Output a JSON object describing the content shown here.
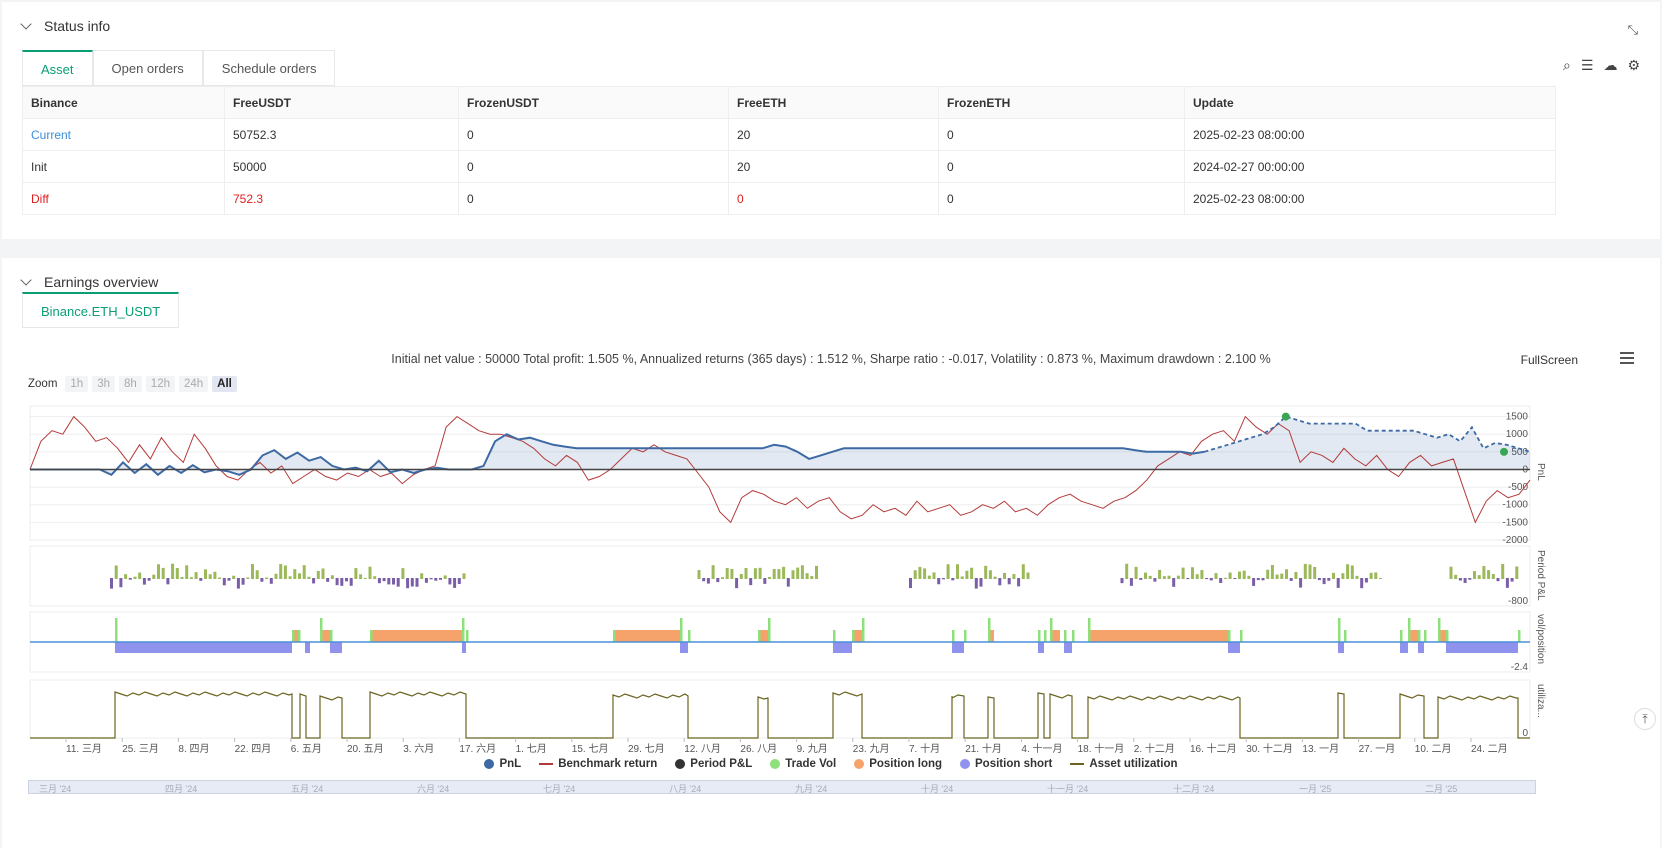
{
  "status": {
    "title": "Status info",
    "tabs": [
      "Asset",
      "Open orders",
      "Schedule orders"
    ],
    "columns": [
      "Binance",
      "FreeUSDT",
      "FrozenUSDT",
      "FreeETH",
      "FrozenETH",
      "Update"
    ],
    "rows": [
      {
        "label": "Current",
        "free_usdt": "50752.3",
        "frozen_usdt": "0",
        "free_eth": "20",
        "frozen_eth": "0",
        "update": "2025-02-23 08:00:00"
      },
      {
        "label": "Init",
        "free_usdt": "50000",
        "frozen_usdt": "0",
        "free_eth": "20",
        "frozen_eth": "0",
        "update": "2024-02-27 00:00:00"
      },
      {
        "label": "Diff",
        "free_usdt": "752.3",
        "frozen_usdt": "0",
        "free_eth": "0",
        "frozen_eth": "0",
        "update": "2025-02-23 08:00:00"
      }
    ]
  },
  "earnings": {
    "title": "Earnings overview",
    "tab": "Binance.ETH_USDT",
    "summary": "Initial net value : 50000 Total profit: 1.505 %, Annualized returns (365 days) : 1.512 %, Sharpe ratio : -0.017, Volatility : 0.873 %, Maximum drawdown : 2.100 %",
    "fullscreen": "FullScreen",
    "zoom_label": "Zoom",
    "zoom_buttons": [
      "1h",
      "3h",
      "8h",
      "12h",
      "24h",
      "All"
    ]
  },
  "colors": {
    "pnl": "#3d6aa5",
    "benchmark": "#b33a3a",
    "period_pnl": "#333333",
    "trade_vol": "#8ee07a",
    "position_long": "#f5a36a",
    "position_short": "#8f93ee",
    "asset_util": "#6b6320"
  },
  "chart_data": {
    "type": "line",
    "x_ticks": [
      "11. 三月",
      "25. 三月",
      "8. 四月",
      "22. 四月",
      "6. 五月",
      "20. 五月",
      "3. 六月",
      "17. 六月",
      "1. 七月",
      "15. 七月",
      "29. 七月",
      "12. 八月",
      "26. 八月",
      "9. 九月",
      "23. 九月",
      "7. 十月",
      "21. 十月",
      "4. 十一月",
      "18. 十一月",
      "2. 十二月",
      "16. 十二月",
      "30. 十二月",
      "13. 一月",
      "27. 一月",
      "10. 二月",
      "24. 二月"
    ],
    "navigator_ticks": [
      "三月 '24",
      "四月 '24",
      "五月 '24",
      "六月 '24",
      "七月 '24",
      "八月 '24",
      "九月 '24",
      "十月 '24",
      "十一月 '24",
      "十二月 '24",
      "一月 '25",
      "二月 '25"
    ],
    "pnl_axis": {
      "ticks": [
        1500,
        1000,
        500,
        0,
        -500,
        -1000,
        -1500,
        -2000
      ],
      "ylim": [
        -2000,
        1800
      ],
      "label": "PnL"
    },
    "period_axis": {
      "ticks": [
        -800
      ],
      "label": "Period P&L"
    },
    "vol_axis": {
      "ticks": [
        -2.4
      ],
      "label": "vol/position"
    },
    "util_axis": {
      "ticks": [
        0
      ],
      "label": "utiliza..."
    },
    "series": [
      {
        "name": "PnL",
        "values": [
          0,
          0,
          0,
          0,
          0,
          0,
          0,
          -150,
          200,
          -100,
          150,
          -150,
          100,
          -100,
          120,
          -80,
          0,
          -50,
          -150,
          0,
          400,
          550,
          300,
          480,
          250,
          350,
          100,
          0,
          50,
          -50,
          250,
          -80,
          0,
          -100,
          0,
          50,
          0,
          0,
          0,
          100,
          800,
          1000,
          850,
          900,
          800,
          700,
          650,
          600,
          600,
          600,
          600,
          600,
          600,
          600,
          600,
          600,
          600,
          600,
          600,
          600,
          600,
          600,
          600,
          600,
          700,
          650,
          500,
          300,
          400,
          500,
          600,
          600,
          600,
          600,
          600,
          600,
          600,
          600,
          600,
          600,
          600,
          600,
          600,
          600,
          600,
          600,
          600,
          600,
          600,
          600,
          600,
          600,
          600,
          600,
          600,
          550,
          500,
          500,
          500,
          500,
          450,
          500,
          600,
          700,
          800,
          900,
          1000,
          1200,
          1500,
          1400,
          1300,
          1300,
          1300,
          1300,
          1300,
          1100,
          1100,
          1100,
          1100,
          1100,
          1000,
          900,
          1000,
          800,
          1200,
          600,
          750,
          700,
          600,
          500
        ]
      },
      {
        "name": "Benchmark return",
        "values": [
          0,
          800,
          1100,
          1000,
          1500,
          1200,
          800,
          900,
          600,
          200,
          700,
          300,
          900,
          500,
          200,
          1000,
          600,
          100,
          -200,
          -300,
          0,
          200,
          -100,
          100,
          -400,
          -200,
          0,
          -200,
          -300,
          -100,
          -200,
          0,
          -200,
          -100,
          -400,
          -150,
          0,
          100,
          1200,
          1500,
          1300,
          1100,
          1000,
          1000,
          900,
          800,
          600,
          300,
          100,
          400,
          200,
          -300,
          -200,
          0,
          300,
          600,
          500,
          700,
          500,
          400,
          300,
          -100,
          -500,
          -1200,
          -1500,
          -800,
          -600,
          -700,
          -900,
          -1000,
          -800,
          -1100,
          -900,
          -800,
          -1200,
          -1400,
          -1300,
          -1000,
          -1200,
          -1100,
          -1300,
          -900,
          -1200,
          -1100,
          -1000,
          -1300,
          -1200,
          -1000,
          -1100,
          -900,
          -1200,
          -1100,
          -1300,
          -1000,
          -800,
          -700,
          -900,
          -1000,
          -1100,
          -900,
          -800,
          -600,
          -300,
          100,
          300,
          500,
          400,
          800,
          1000,
          1100,
          800,
          1500,
          1200,
          1000,
          1300,
          1100,
          200,
          500,
          400,
          200,
          600,
          300,
          100,
          400,
          0,
          -200,
          200,
          400,
          100,
          200,
          300,
          -600,
          -1500,
          -900,
          -600,
          -800,
          -700,
          -300
        ]
      },
      {
        "name": "Period P&L"
      },
      {
        "name": "Trade Vol"
      },
      {
        "name": "Position long"
      },
      {
        "name": "Position short"
      },
      {
        "name": "Asset utilization"
      }
    ]
  }
}
